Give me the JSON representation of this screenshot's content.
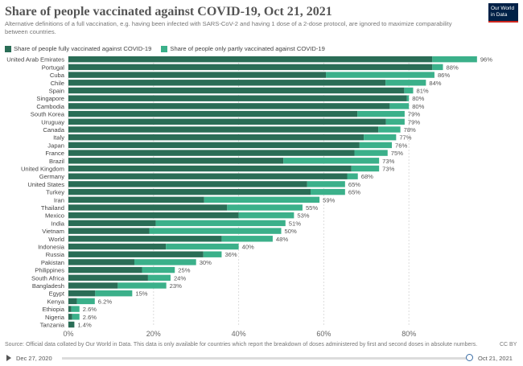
{
  "header": {
    "title": "Share of people vaccinated against COVID-19, Oct 21, 2021",
    "subtitle": "Alternative definitions of a full vaccination, e.g. having been infected with SARS-CoV-2 and having 1 dose of a 2-dose protocol, are ignored to maximize comparability between countries.",
    "logo_line1": "Our World",
    "logo_line2": "in Data"
  },
  "colors": {
    "full": "#2a6d56",
    "partial": "#3bb08a",
    "grid": "#dddddd",
    "logo_bg": "#002147",
    "logo_accent": "#ce261e"
  },
  "chart_data": {
    "type": "bar",
    "orientation": "horizontal",
    "stacked": true,
    "title": "Share of people vaccinated against COVID-19, Oct 21, 2021",
    "xlim": [
      0,
      100
    ],
    "xticks": [
      0,
      20,
      40,
      60,
      80
    ],
    "xtick_labels": [
      "0%",
      "20%",
      "40%",
      "60%",
      "80%"
    ],
    "legend": "top-left",
    "categories": [
      "United Arab Emirates",
      "Portugal",
      "Cuba",
      "Chile",
      "Spain",
      "Singapore",
      "Cambodia",
      "South Korea",
      "Uruguay",
      "Canada",
      "Italy",
      "Japan",
      "France",
      "Brazil",
      "United Kingdom",
      "Germany",
      "United States",
      "Turkey",
      "Iran",
      "Thailand",
      "Mexico",
      "India",
      "Vietnam",
      "World",
      "Indonesia",
      "Russia",
      "Pakistan",
      "Philippines",
      "South Africa",
      "Bangladesh",
      "Egypt",
      "Kenya",
      "Ethiopia",
      "Nigeria",
      "Tanzania"
    ],
    "series": [
      {
        "name": "Share of people fully vaccinated against COVID-19",
        "values": [
          85.5,
          85.5,
          60.5,
          74.5,
          78.9,
          79.5,
          75.5,
          67.9,
          74.6,
          72.8,
          69.4,
          68.4,
          67.2,
          50.5,
          66.5,
          65.5,
          56.1,
          56.9,
          31.9,
          37.3,
          40.0,
          20.5,
          19.0,
          36.0,
          22.9,
          31.7,
          15.5,
          17.3,
          18.7,
          11.6,
          6.3,
          2.0,
          0.7,
          0.9,
          1.4
        ]
      },
      {
        "name": "Share of people only partly vaccinated against COVID-19",
        "values": [
          10.5,
          2.5,
          25.5,
          9.5,
          2.1,
          0.5,
          4.5,
          11.1,
          4.4,
          5.2,
          7.6,
          7.6,
          7.8,
          22.5,
          6.5,
          2.5,
          8.9,
          8.1,
          27.1,
          17.7,
          13.0,
          30.5,
          31.0,
          12.0,
          17.1,
          4.3,
          14.5,
          7.7,
          5.3,
          11.4,
          8.7,
          4.2,
          1.9,
          1.7,
          0.0
        ]
      }
    ],
    "total_labels": [
      "96%",
      "88%",
      "86%",
      "84%",
      "81%",
      "80%",
      "80%",
      "79%",
      "79%",
      "78%",
      "77%",
      "76%",
      "75%",
      "73%",
      "73%",
      "68%",
      "65%",
      "65%",
      "59%",
      "55%",
      "53%",
      "51%",
      "50%",
      "48%",
      "40%",
      "36%",
      "30%",
      "25%",
      "24%",
      "23%",
      "15%",
      "6.2%",
      "2.6%",
      "2.6%",
      "1.4%"
    ]
  },
  "footer": {
    "source": "Source: Official data collated by Our World in Data. This data is only available for countries which report the breakdown of doses administered by first and second doses in absolute numbers.",
    "license": "CC BY"
  },
  "timeline": {
    "start_date": "Dec 27, 2020",
    "end_date": "Oct 21, 2021"
  }
}
